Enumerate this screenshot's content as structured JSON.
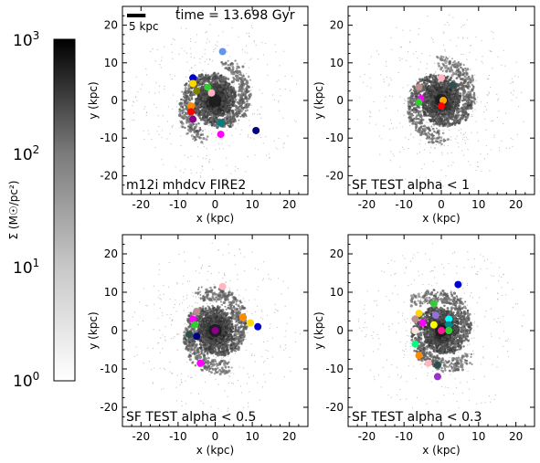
{
  "colorbar": {
    "label": "Σ (M☉/pc²)",
    "scale": "log",
    "range": [
      1,
      1000
    ],
    "ticks": [
      {
        "value": 1000,
        "base": "10",
        "exp": "3"
      },
      {
        "value": 100,
        "base": "10",
        "exp": "2"
      },
      {
        "value": 10,
        "base": "10",
        "exp": "1"
      },
      {
        "value": 1,
        "base": "10",
        "exp": "0"
      }
    ],
    "color_low": "#ffffff",
    "color_high": "#000000"
  },
  "chart_data": [
    {
      "type": "scatter",
      "title": "m12i mhdcv FIRE2",
      "annotations": [
        "time = 13.698 Gyr",
        "5 kpc"
      ],
      "scale_bar_kpc": 5,
      "xlabel": "x (kpc)",
      "ylabel": "y (kpc)",
      "xlim": [
        -25,
        25
      ],
      "ylim": [
        -25,
        25
      ],
      "xticks": [
        -20,
        -10,
        0,
        10,
        20
      ],
      "yticks": [
        -20,
        -10,
        0,
        10,
        20
      ],
      "background": "grayscale surface density map (spiral disk)",
      "points": [
        {
          "x": 2,
          "y": 13,
          "color": "#6495ed"
        },
        {
          "x": -6,
          "y": 6,
          "color": "#0000cd"
        },
        {
          "x": -6,
          "y": 4.5,
          "color": "#ffd700"
        },
        {
          "x": -2,
          "y": 3.5,
          "color": "#32cd32"
        },
        {
          "x": -5,
          "y": 2.5,
          "color": "#808000"
        },
        {
          "x": -1,
          "y": 2,
          "color": "#ffb6c1"
        },
        {
          "x": -6.5,
          "y": -1.5,
          "color": "#ff8c00"
        },
        {
          "x": -6.5,
          "y": -3,
          "color": "#ff0000"
        },
        {
          "x": -6,
          "y": -5,
          "color": "#8b008b"
        },
        {
          "x": 1.5,
          "y": -6,
          "color": "#008080"
        },
        {
          "x": 11,
          "y": -8,
          "color": "#000080"
        },
        {
          "x": 1.5,
          "y": -9,
          "color": "#ff00ff"
        }
      ]
    },
    {
      "type": "scatter",
      "title": "SF TEST alpha < 1",
      "xlabel": "x (kpc)",
      "ylabel": "y (kpc)",
      "xlim": [
        -25,
        25
      ],
      "ylim": [
        -25,
        25
      ],
      "xticks": [
        -20,
        -10,
        0,
        10,
        20
      ],
      "yticks": [
        -20,
        -10,
        0,
        10,
        20
      ],
      "background": "grayscale surface density map (spiral disk)",
      "points": [
        {
          "x": 0,
          "y": 6,
          "color": "#ffb6c1"
        },
        {
          "x": 3,
          "y": 4,
          "color": "#2f4f4f"
        },
        {
          "x": -6,
          "y": 3.5,
          "color": "#bc8f8f"
        },
        {
          "x": -5.5,
          "y": 0.5,
          "color": "#ff00ff"
        },
        {
          "x": -6,
          "y": -0.5,
          "color": "#32cd32"
        },
        {
          "x": 0.5,
          "y": 0,
          "color": "#ffa500"
        },
        {
          "x": 0,
          "y": -1.5,
          "color": "#ff0000"
        }
      ]
    },
    {
      "type": "scatter",
      "title": "SF TEST alpha < 0.5",
      "xlabel": "x (kpc)",
      "ylabel": "y (kpc)",
      "xlim": [
        -25,
        25
      ],
      "ylim": [
        -25,
        25
      ],
      "xticks": [
        -20,
        -10,
        0,
        10,
        20
      ],
      "yticks": [
        -20,
        -10,
        0,
        10,
        20
      ],
      "background": "grayscale surface density map (spiral disk)",
      "points": [
        {
          "x": 2,
          "y": 11.5,
          "color": "#ffb6c1"
        },
        {
          "x": -5,
          "y": 5,
          "color": "#bc8f8f"
        },
        {
          "x": -6,
          "y": 3,
          "color": "#ff00ff"
        },
        {
          "x": 7.5,
          "y": 3.5,
          "color": "#ff8c00"
        },
        {
          "x": 9.5,
          "y": 2,
          "color": "#ffd700"
        },
        {
          "x": -5.5,
          "y": 1.5,
          "color": "#32cd32"
        },
        {
          "x": 11.5,
          "y": 1,
          "color": "#0000cd"
        },
        {
          "x": 0,
          "y": 0,
          "color": "#8b008b"
        },
        {
          "x": -7,
          "y": -1,
          "color": "#2f4f4f"
        },
        {
          "x": -5,
          "y": -1.5,
          "color": "#000080"
        },
        {
          "x": -4,
          "y": -8.5,
          "color": "#ff00ff"
        }
      ]
    },
    {
      "type": "scatter",
      "title": "SF TEST alpha < 0.3",
      "xlabel": "x (kpc)",
      "ylabel": "y (kpc)",
      "xlim": [
        -25,
        25
      ],
      "ylim": [
        -25,
        25
      ],
      "xticks": [
        -20,
        -10,
        0,
        10,
        20
      ],
      "yticks": [
        -20,
        -10,
        0,
        10,
        20
      ],
      "background": "grayscale surface density map (spiral disk)",
      "points": [
        {
          "x": 4.5,
          "y": 12,
          "color": "#0000cd"
        },
        {
          "x": -2,
          "y": 7,
          "color": "#32cd32"
        },
        {
          "x": -6,
          "y": 4.5,
          "color": "#ffd700"
        },
        {
          "x": -7,
          "y": 3,
          "color": "#bc8f8f"
        },
        {
          "x": -1.5,
          "y": 4,
          "color": "#9370db"
        },
        {
          "x": 2,
          "y": 3,
          "color": "#00ffff"
        },
        {
          "x": -5,
          "y": 2,
          "color": "#ff00ff"
        },
        {
          "x": -2,
          "y": 1.5,
          "color": "#ffff00"
        },
        {
          "x": 2,
          "y": 1.5,
          "color": "#008b8b"
        },
        {
          "x": -7,
          "y": 0,
          "color": "#ffe4e1"
        },
        {
          "x": 0,
          "y": 0,
          "color": "#ff1493"
        },
        {
          "x": 2,
          "y": 0,
          "color": "#32cd32"
        },
        {
          "x": -7,
          "y": -3.5,
          "color": "#00ff7f"
        },
        {
          "x": -6,
          "y": -6.5,
          "color": "#ff8c00"
        },
        {
          "x": -3.5,
          "y": -8.5,
          "color": "#ffb6c1"
        },
        {
          "x": -1,
          "y": -9,
          "color": "#2f4f4f"
        },
        {
          "x": -1,
          "y": -12,
          "color": "#9932cc"
        }
      ]
    }
  ]
}
